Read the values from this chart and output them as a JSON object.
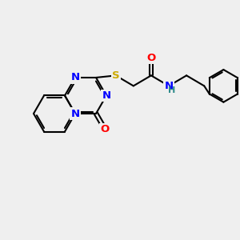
{
  "bg_color": "#efefef",
  "atom_colors": {
    "N": "#0000ff",
    "O": "#ff0000",
    "S": "#ccaa00",
    "C": "#000000",
    "H": "#2e8b8b"
  },
  "bond_color": "#000000",
  "bond_width": 1.5,
  "font_size": 9.5
}
